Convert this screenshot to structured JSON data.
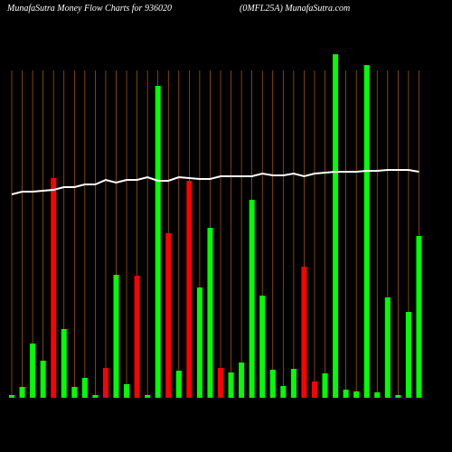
{
  "chart_data": {
    "type": "bar",
    "title": "MunafaSutra  Money Flow  Charts for 936020",
    "subtitle": "(0MFL25A) MunafaSutra.com",
    "values": [
      3,
      12,
      60,
      41,
      243,
      76,
      12,
      22,
      3,
      33,
      136,
      15,
      135,
      3,
      345,
      182,
      30,
      240,
      122,
      188,
      33,
      28,
      39,
      219,
      113,
      31,
      13,
      32,
      145,
      18,
      27,
      380,
      9,
      7,
      368,
      6,
      111,
      3,
      95,
      179
    ],
    "colors": [
      "#00ff00",
      "#00ff00",
      "#00ff00",
      "#00ff00",
      "#ff0000",
      "#00ff00",
      "#00ff00",
      "#00ff00",
      "#00ff00",
      "#ff0000",
      "#00ff00",
      "#00ff00",
      "#ff0000",
      "#00ff00",
      "#00ff00",
      "#ff0000",
      "#00ff00",
      "#ff0000",
      "#00ff00",
      "#00ff00",
      "#ff0000",
      "#00ff00",
      "#00ff00",
      "#00ff00",
      "#00ff00",
      "#00ff00",
      "#00ff00",
      "#00ff00",
      "#ff0000",
      "#ff0000",
      "#00ff00",
      "#00ff00",
      "#00ff00",
      "#00ff00",
      "#00ff00",
      "#00ff00",
      "#00ff00",
      "#00ff00",
      "#00ff00",
      "#00ff00"
    ],
    "line": {
      "color": "#ffffff",
      "values": [
        225,
        228,
        228,
        229,
        230,
        233,
        233,
        236,
        236,
        241,
        238,
        241,
        241,
        244,
        240,
        240,
        244,
        243,
        242,
        242,
        245,
        245,
        245,
        245,
        248,
        246,
        246,
        248,
        245,
        248,
        249,
        250,
        250,
        250,
        251,
        251,
        252,
        252,
        252,
        250
      ]
    },
    "ylim": [
      0,
      380
    ],
    "grid_color": "#b8600a"
  }
}
